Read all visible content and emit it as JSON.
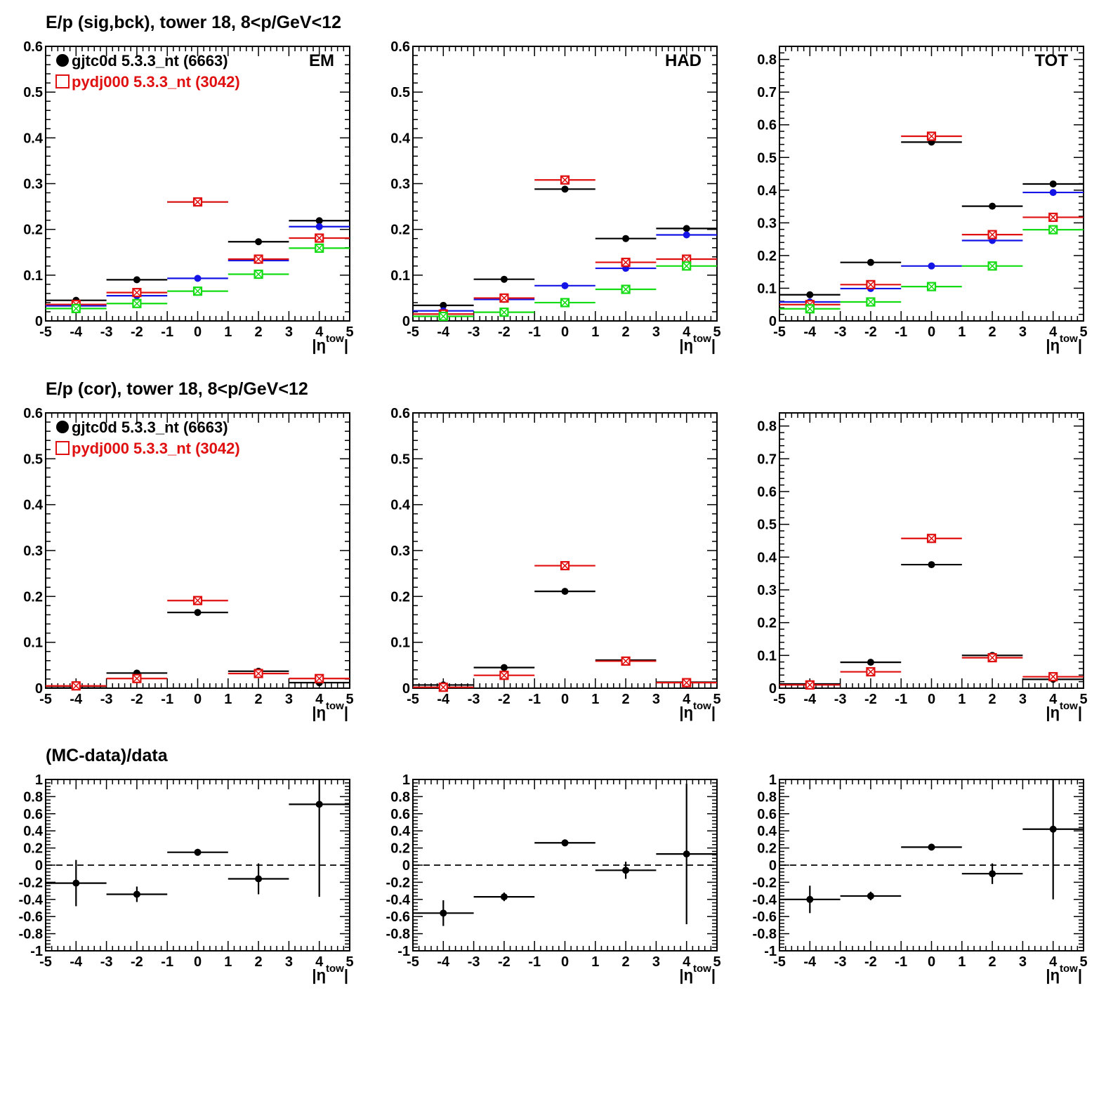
{
  "row_titles": [
    "E/p (sig,bck), tower 18,  8<p/GeV<12",
    "E/p (cor), tower 18,  8<p/GeV<12",
    "(MC-data)/data"
  ],
  "legend": {
    "data_label": "gjtc0d 5.3.3_nt (6663)",
    "mc_label": "pydj000 5.3.3_nt (3042)"
  },
  "colors": {
    "data": "#000000",
    "mc": "#e01010",
    "blue": "#1414e6",
    "green": "#14dc14"
  },
  "chart_data": [
    {
      "type": "scatter",
      "panel_label": "EM",
      "x": [
        -4,
        -2,
        0,
        2,
        4
      ],
      "x_bin_halfwidth": 1,
      "xlim": [
        -5,
        5
      ],
      "ylim": [
        0,
        0.6
      ],
      "xlabel": "|η^tow|",
      "ylabel": "",
      "yticks": [
        "0",
        "0.1",
        "0.2",
        "0.3",
        "0.4",
        "0.5",
        "0.6"
      ],
      "xticks": [
        "-5",
        "-4",
        "-3",
        "-2",
        "-1",
        "0",
        "1",
        "2",
        "3",
        "4",
        "5"
      ],
      "series": [
        {
          "name": "gjtc0d 5.3.3_nt (6663)",
          "color": "black",
          "marker": "dot",
          "values": [
            0.045,
            0.09,
            0.26,
            0.173,
            0.219
          ]
        },
        {
          "color": "blue",
          "marker": "dot",
          "values": [
            0.033,
            0.055,
            0.093,
            0.132,
            0.206
          ]
        },
        {
          "name": "pydj000 5.3.3_nt (3042)",
          "color": "red",
          "marker": "box",
          "values": [
            0.036,
            0.062,
            0.26,
            0.135,
            0.181
          ]
        },
        {
          "color": "green",
          "marker": "box",
          "values": [
            0.027,
            0.038,
            0.065,
            0.102,
            0.159
          ]
        }
      ]
    },
    {
      "type": "scatter",
      "panel_label": "HAD",
      "x": [
        -4,
        -2,
        0,
        2,
        4
      ],
      "x_bin_halfwidth": 1,
      "xlim": [
        -5,
        5
      ],
      "ylim": [
        0,
        0.6
      ],
      "xlabel": "|η^tow|",
      "ylabel": "",
      "yticks": [
        "0",
        "0.1",
        "0.2",
        "0.3",
        "0.4",
        "0.5",
        "0.6"
      ],
      "xticks": [
        "-5",
        "-4",
        "-3",
        "-2",
        "-1",
        "0",
        "1",
        "2",
        "3",
        "4",
        "5"
      ],
      "series": [
        {
          "color": "black",
          "marker": "dot",
          "values": [
            0.034,
            0.091,
            0.288,
            0.18,
            0.202
          ]
        },
        {
          "color": "blue",
          "marker": "dot",
          "values": [
            0.022,
            0.047,
            0.077,
            0.115,
            0.188
          ]
        },
        {
          "color": "red",
          "marker": "box",
          "values": [
            0.015,
            0.05,
            0.308,
            0.128,
            0.135
          ]
        },
        {
          "color": "green",
          "marker": "box",
          "values": [
            0.01,
            0.019,
            0.04,
            0.069,
            0.12
          ]
        }
      ]
    },
    {
      "type": "scatter",
      "panel_label": "TOT",
      "x": [
        -4,
        -2,
        0,
        2,
        4
      ],
      "x_bin_halfwidth": 1,
      "xlim": [
        -5,
        5
      ],
      "ylim": [
        0,
        0.84
      ],
      "xlabel": "|η^tow|",
      "ylabel": "",
      "yticks": [
        "0",
        "0.1",
        "0.2",
        "0.3",
        "0.4",
        "0.5",
        "0.6",
        "0.7",
        "0.8"
      ],
      "xticks": [
        "-5",
        "-4",
        "-3",
        "-2",
        "-1",
        "0",
        "1",
        "2",
        "3",
        "4",
        "5"
      ],
      "series": [
        {
          "color": "black",
          "marker": "dot",
          "values": [
            0.08,
            0.179,
            0.547,
            0.351,
            0.419
          ]
        },
        {
          "color": "blue",
          "marker": "dot",
          "values": [
            0.058,
            0.099,
            0.168,
            0.246,
            0.393
          ]
        },
        {
          "color": "red",
          "marker": "box",
          "values": [
            0.05,
            0.111,
            0.565,
            0.264,
            0.317
          ]
        },
        {
          "color": "green",
          "marker": "box",
          "values": [
            0.037,
            0.058,
            0.105,
            0.168,
            0.279
          ]
        }
      ]
    },
    {
      "type": "scatter",
      "panel_label": "",
      "x": [
        -4,
        -2,
        0,
        2,
        4
      ],
      "x_bin_halfwidth": 1,
      "xlim": [
        -5,
        5
      ],
      "ylim": [
        0,
        0.6
      ],
      "xlabel": "|η^tow|",
      "ylabel": "",
      "yticks": [
        "0",
        "0.1",
        "0.2",
        "0.3",
        "0.4",
        "0.5",
        "0.6"
      ],
      "xticks": [
        "-5",
        "-4",
        "-3",
        "-2",
        "-1",
        "0",
        "1",
        "2",
        "3",
        "4",
        "5"
      ],
      "series": [
        {
          "name": "gjtc0d 5.3.3_nt (6663)",
          "color": "black",
          "marker": "dot",
          "values": [
            0.004,
            0.033,
            0.165,
            0.037,
            0.012
          ]
        },
        {
          "name": "pydj000 5.3.3_nt (3042)",
          "color": "red",
          "marker": "box",
          "values": [
            0.005,
            0.021,
            0.191,
            0.032,
            0.021
          ]
        }
      ]
    },
    {
      "type": "scatter",
      "panel_label": "",
      "x": [
        -4,
        -2,
        0,
        2,
        4
      ],
      "x_bin_halfwidth": 1,
      "xlim": [
        -5,
        5
      ],
      "ylim": [
        0,
        0.6
      ],
      "xlabel": "|η^tow|",
      "ylabel": "",
      "yticks": [
        "0",
        "0.1",
        "0.2",
        "0.3",
        "0.4",
        "0.5",
        "0.6"
      ],
      "xticks": [
        "-5",
        "-4",
        "-3",
        "-2",
        "-1",
        "0",
        "1",
        "2",
        "3",
        "4",
        "5"
      ],
      "series": [
        {
          "color": "black",
          "marker": "dot",
          "values": [
            0.007,
            0.045,
            0.211,
            0.061,
            0.013
          ]
        },
        {
          "color": "red",
          "marker": "box",
          "values": [
            0.002,
            0.028,
            0.267,
            0.059,
            0.012
          ]
        }
      ]
    },
    {
      "type": "scatter",
      "panel_label": "",
      "x": [
        -4,
        -2,
        0,
        2,
        4
      ],
      "x_bin_halfwidth": 1,
      "xlim": [
        -5,
        5
      ],
      "ylim": [
        0,
        0.84
      ],
      "xlabel": "|η^tow|",
      "ylabel": "",
      "yticks": [
        "0",
        "0.1",
        "0.2",
        "0.3",
        "0.4",
        "0.5",
        "0.6",
        "0.7",
        "0.8"
      ],
      "xticks": [
        "-5",
        "-4",
        "-3",
        "-2",
        "-1",
        "0",
        "1",
        "2",
        "3",
        "4",
        "5"
      ],
      "series": [
        {
          "color": "black",
          "marker": "dot",
          "values": [
            0.013,
            0.079,
            0.377,
            0.1,
            0.027
          ]
        },
        {
          "color": "red",
          "marker": "box",
          "values": [
            0.01,
            0.05,
            0.457,
            0.093,
            0.035
          ]
        }
      ]
    },
    {
      "type": "scatter",
      "panel_label": "",
      "x": [
        -4,
        -2,
        0,
        2,
        4
      ],
      "x_bin_halfwidth": 1,
      "xlim": [
        -5,
        5
      ],
      "ylim": [
        -1,
        1
      ],
      "xlabel": "|η^tow|",
      "ylabel": "",
      "reference_line": 0,
      "yticks": [
        "-1",
        "-0.8",
        "-0.6",
        "-0.4",
        "-0.2",
        "0",
        "0.2",
        "0.4",
        "0.6",
        "0.8",
        "1"
      ],
      "xticks": [
        "-5",
        "-4",
        "-3",
        "-2",
        "-1",
        "0",
        "1",
        "2",
        "3",
        "4",
        "5"
      ],
      "series": [
        {
          "color": "black",
          "marker": "dot",
          "values": [
            -0.21,
            -0.34,
            0.15,
            -0.16,
            0.71
          ],
          "y_errors": [
            0.27,
            0.09,
            0.04,
            0.18,
            1.08
          ]
        }
      ]
    },
    {
      "type": "scatter",
      "panel_label": "",
      "x": [
        -4,
        -2,
        0,
        2,
        4
      ],
      "x_bin_halfwidth": 1,
      "xlim": [
        -5,
        5
      ],
      "ylim": [
        -1,
        1
      ],
      "xlabel": "|η^tow|",
      "ylabel": "",
      "reference_line": 0,
      "yticks": [
        "-1",
        "-0.8",
        "-0.6",
        "-0.4",
        "-0.2",
        "0",
        "0.2",
        "0.4",
        "0.6",
        "0.8",
        "1"
      ],
      "xticks": [
        "-5",
        "-4",
        "-3",
        "-2",
        "-1",
        "0",
        "1",
        "2",
        "3",
        "4",
        "5"
      ],
      "series": [
        {
          "color": "black",
          "marker": "dot",
          "values": [
            -0.56,
            -0.37,
            0.26,
            -0.06,
            0.13
          ],
          "y_errors": [
            0.15,
            0.05,
            0.04,
            0.1,
            0.82
          ]
        }
      ]
    },
    {
      "type": "scatter",
      "panel_label": "",
      "x": [
        -4,
        -2,
        0,
        2,
        4
      ],
      "x_bin_halfwidth": 1,
      "xlim": [
        -5,
        5
      ],
      "ylim": [
        -1,
        1
      ],
      "xlabel": "|η^tow|",
      "ylabel": "",
      "reference_line": 0,
      "yticks": [
        "-1",
        "-0.8",
        "-0.6",
        "-0.4",
        "-0.2",
        "0",
        "0.2",
        "0.4",
        "0.6",
        "0.8",
        "1"
      ],
      "xticks": [
        "-5",
        "-4",
        "-3",
        "-2",
        "-1",
        "0",
        "1",
        "2",
        "3",
        "4",
        "5"
      ],
      "series": [
        {
          "color": "black",
          "marker": "dot",
          "values": [
            -0.4,
            -0.36,
            0.21,
            -0.1,
            0.42
          ],
          "y_errors": [
            0.16,
            0.05,
            0.03,
            0.12,
            0.82
          ]
        }
      ]
    }
  ]
}
